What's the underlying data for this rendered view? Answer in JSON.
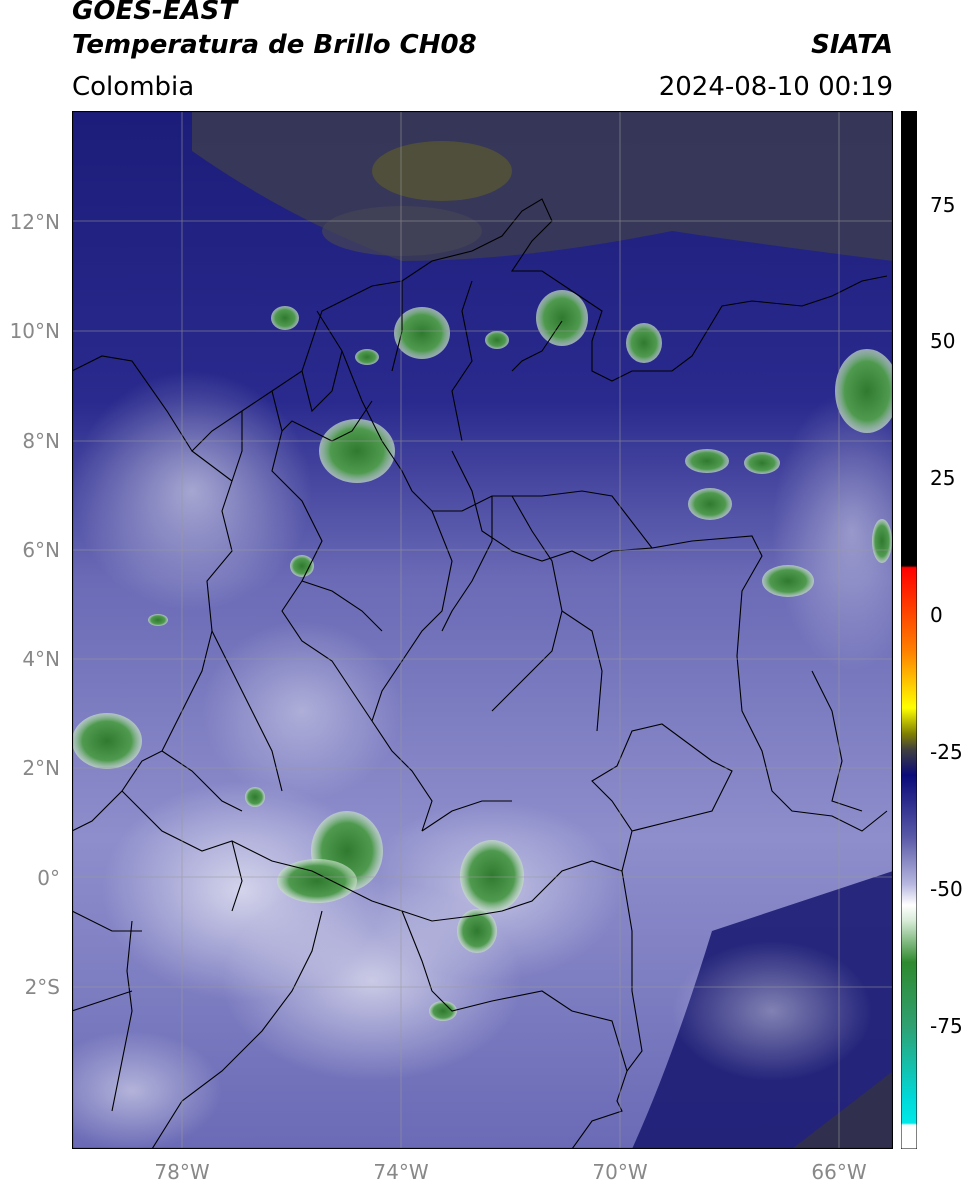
{
  "header": {
    "title_line1": "GOES-EAST",
    "title_line2": "Temperatura de Brillo CH08",
    "region": "Colombia",
    "agency": "SIATA",
    "timestamp": "2024-08-10 00:19"
  },
  "map": {
    "lat_labels": [
      "12°N",
      "10°N",
      "8°N",
      "6°N",
      "4°N",
      "2°N",
      "0°",
      "2°S"
    ],
    "lon_labels": [
      "78°W",
      "74°W",
      "70°W",
      "66°W"
    ]
  },
  "colorbar": {
    "tick_labels": [
      "75",
      "50",
      "25",
      "0",
      "-25",
      "-50",
      "-75"
    ],
    "colors": {
      "top_black": "#000000",
      "red": "#e82000",
      "yellow": "#f0e000",
      "navy": "#0a0a7a",
      "lavender": "#7a7ac0",
      "white": "#ffffff",
      "green": "#2f8a2f",
      "cyan": "#00e0e0"
    }
  }
}
